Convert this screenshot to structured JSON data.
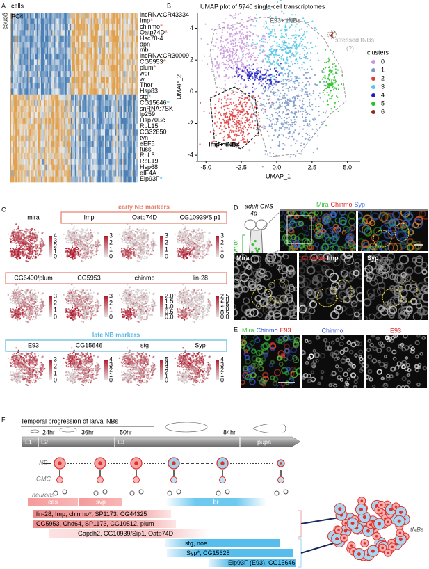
{
  "panel_a": {
    "label": "A",
    "x_label": "cells",
    "y_label": "genes",
    "component": "PC4",
    "genes": [
      {
        "name": "lncRNA:CR43334"
      },
      {
        "name": "Imp",
        "star": "*",
        "star_color": "#e8775a"
      },
      {
        "name": "chinmo",
        "star": "*",
        "star_color": "#e8775a"
      },
      {
        "name": "Oatp74D",
        "star": "*",
        "star_color": "#e8775a"
      },
      {
        "name": "Hsc70-4"
      },
      {
        "name": "dpn"
      },
      {
        "name": "mbl"
      },
      {
        "name": "lncRNA:CR30009"
      },
      {
        "name": "CG5953",
        "star": "*",
        "star_color": "#e8775a"
      },
      {
        "name": "plum",
        "star": "*",
        "star_color": "#e8775a"
      },
      {
        "name": "wor"
      },
      {
        "name": "w"
      },
      {
        "name": "Thor"
      },
      {
        "name": "Hsp83"
      },
      {
        "name": "stg",
        "star": "*",
        "star_color": "#3fbfe8"
      },
      {
        "name": "CG15646",
        "star": "*",
        "star_color": "#3fbfe8"
      },
      {
        "name": "snRNA:7SK"
      },
      {
        "name": "lp259"
      },
      {
        "name": "Hsp70Bc"
      },
      {
        "name": "RpL15"
      },
      {
        "name": "CG32850"
      },
      {
        "name": "tyn"
      },
      {
        "name": "eEF5"
      },
      {
        "name": "fuss"
      },
      {
        "name": "RpL5"
      },
      {
        "name": "RpL19"
      },
      {
        "name": "Hsp68"
      },
      {
        "name": "eIF4A"
      },
      {
        "name": "Eip93F",
        "star": "*",
        "star_color": "#3fbfe8"
      }
    ]
  },
  "panel_b": {
    "label": "B",
    "title": "UMAP plot of 5740 single-cell transcriptomes",
    "x_label": "UMAP_1",
    "y_label": "UMAP_2",
    "x_ticks": [
      "-5.0",
      "-2.5",
      "0.0",
      "2.5",
      "5.0"
    ],
    "y_ticks": [
      "4",
      "2",
      "0",
      "-2",
      "-4"
    ],
    "annotations": {
      "e93": "E93+ tNBs",
      "stressed": "stressed tNBs",
      "question": "(?)",
      "imp": "Imp+ tNBs"
    },
    "legend": {
      "title": "clusters",
      "entries": [
        {
          "name": "0",
          "color": "#c896dc"
        },
        {
          "name": "1",
          "color": "#7b97c9"
        },
        {
          "name": "2",
          "color": "#e23a3a"
        },
        {
          "name": "3",
          "color": "#4fc8ea"
        },
        {
          "name": "4",
          "color": "#1c1cc8"
        },
        {
          "name": "5",
          "color": "#25c125"
        },
        {
          "name": "6",
          "color": "#8b2d1c"
        }
      ]
    }
  },
  "panel_c": {
    "label": "C",
    "groups": [
      {
        "title": "early NB markers",
        "color": "#e57b6b"
      },
      {
        "title": "late NB markers",
        "color": "#5bb8e0"
      }
    ],
    "plots": [
      {
        "gene": "mira",
        "scale": [
          "4",
          "3",
          "2",
          "1",
          "0"
        ]
      },
      {
        "gene": "Imp",
        "scale": [
          "3",
          "2",
          "1",
          "0"
        ]
      },
      {
        "gene": "Oatp74D",
        "scale": [
          "3",
          "2",
          "1",
          "0"
        ]
      },
      {
        "gene": "CG10939/Sip1",
        "scale": [
          "3",
          "2",
          "1",
          "0"
        ]
      },
      {
        "gene": "CG6490/plum",
        "scale": [
          "3",
          "2",
          "1",
          "0"
        ]
      },
      {
        "gene": "CG5953",
        "scale": [
          "3",
          "2",
          "1",
          "0"
        ]
      },
      {
        "gene": "chinmo",
        "scale": [
          "2.0",
          "1.5",
          "1.0",
          "0.5",
          "0.0"
        ]
      },
      {
        "gene": "lin-28",
        "scale": [
          "2.5",
          "2.0",
          "1.5",
          "1.0",
          "0.5",
          "0.0"
        ]
      },
      {
        "gene": "E93",
        "scale": [
          "3",
          "2",
          "1",
          "0"
        ]
      },
      {
        "gene": "CG15646",
        "scale": [
          "4",
          "3",
          "2",
          "1",
          "0"
        ]
      },
      {
        "gene": "stg",
        "scale": [
          "5",
          "4",
          "3",
          "2",
          "1",
          "0"
        ]
      },
      {
        "gene": "Syp",
        "scale": [
          "4",
          "3",
          "2",
          "1",
          "0"
        ]
      }
    ]
  },
  "panel_d": {
    "label": "D",
    "sample": "adult CNS",
    "age": "4d",
    "region": "tumor",
    "stain": [
      {
        "name": "Mira",
        "color": "#3cc23c"
      },
      {
        "name": "Chinmo",
        "color": "#e02020"
      },
      {
        "name": "Syp",
        "color": "#3a6fe0"
      }
    ],
    "channels": [
      {
        "parts": [
          {
            "name": "Mira",
            "color": "#ffffff"
          }
        ]
      },
      {
        "parts": [
          {
            "name": "Chinmo",
            "color": "#e02020"
          },
          {
            "name": "Imp",
            "color": "#ffffff"
          }
        ]
      },
      {
        "parts": [
          {
            "name": "Syp",
            "color": "#ffffff"
          }
        ]
      }
    ]
  },
  "panel_e": {
    "label": "E",
    "stain": [
      {
        "name": "Mira",
        "color": "#3cc23c"
      },
      {
        "name": "Chinmo",
        "color": "#2f4fd8"
      },
      {
        "name": "E93",
        "color": "#e02020"
      }
    ],
    "channels": [
      {
        "name": "Chinmo",
        "color": "#2f4fd8"
      },
      {
        "name": "E93",
        "color": "#e02020"
      }
    ]
  },
  "panel_f": {
    "label": "F",
    "title": "Temporal progression of larval NBs",
    "stages": [
      "L1",
      "L2",
      "L3",
      "pupa"
    ],
    "times": [
      "24hr",
      "36hr",
      "50hr",
      "84hr"
    ],
    "rows": [
      "NB",
      "GMC",
      "neurons"
    ],
    "factors": [
      "cas",
      "svp",
      "br"
    ],
    "genes": [
      "lin-28, Imp, chinmo*, SP1173, CG44325",
      "CG5953, Chd64, SP1173, CG10512, plum",
      "Gapdh2, CG10939/Sip1, Oatp74D",
      "stg, noe",
      "Syp*, CG15628",
      "Eip93F (E93), CG15646"
    ],
    "tumor": "tNBs"
  }
}
